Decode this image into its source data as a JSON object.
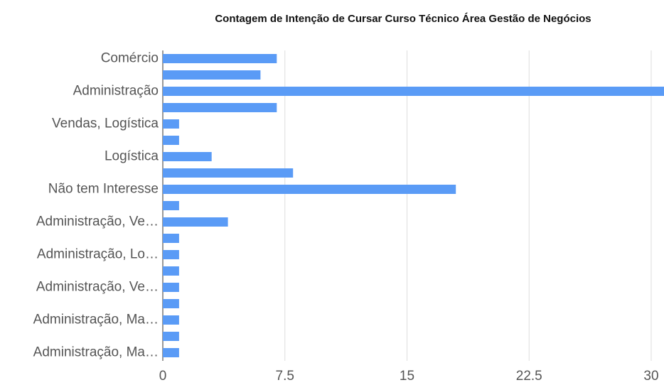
{
  "chart_data": {
    "type": "hbar",
    "title": "Contagem de Intenção de Cursar Curso Técnico Área Gestão de Negócios",
    "categories": [
      "Comércio",
      null,
      "Administração",
      null,
      "Vendas, Logística",
      null,
      "Logística",
      null,
      "Não tem Interesse",
      null,
      "Administração, Ve…",
      null,
      "Administração, Lo…",
      null,
      "Administração, Ve…",
      null,
      "Administração, Ma…",
      null,
      "Administração, Ma…"
    ],
    "values": [
      7,
      6,
      31,
      7,
      1,
      1,
      3,
      8,
      18,
      1,
      4,
      1,
      1,
      1,
      1,
      1,
      1,
      1,
      1
    ],
    "color": "#5a9bf6",
    "xlim": [
      0,
      30
    ],
    "xticks": [
      0,
      7.5,
      15,
      22.5,
      30
    ],
    "grid": true
  }
}
